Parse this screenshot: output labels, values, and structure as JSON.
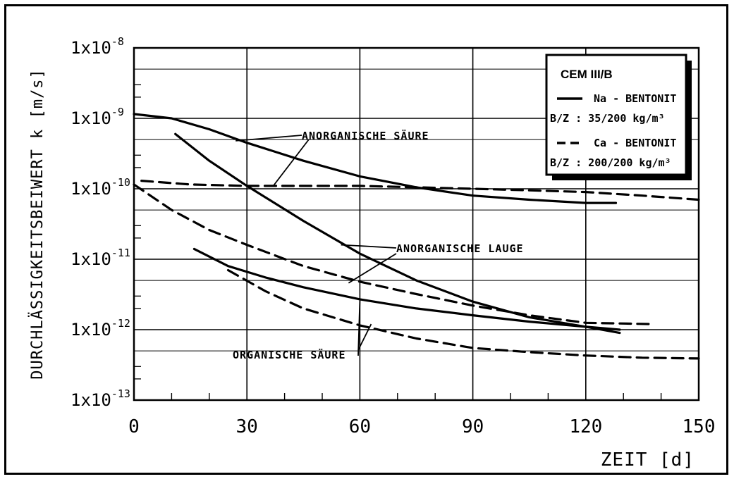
{
  "chart_data": {
    "type": "line",
    "ylabel": "DURCHLÄSSIGKEITSBEIWERT  k [m/s]",
    "xlabel": "ZEIT  [d]",
    "xlim": [
      0,
      150
    ],
    "ylim": [
      1e-13,
      1e-08
    ],
    "yscale": "log",
    "grid": true,
    "x_ticks": [
      "0",
      "30",
      "60",
      "90",
      "120",
      "150"
    ],
    "y_ticks": [
      {
        "base": "1x10",
        "exp": "-8",
        "value": 1e-08
      },
      {
        "base": "1x10",
        "exp": "-9",
        "value": 1e-09
      },
      {
        "base": "1x10",
        "exp": "-10",
        "value": 1e-10
      },
      {
        "base": "1x10",
        "exp": "-11",
        "value": 1e-11
      },
      {
        "base": "1x10",
        "exp": "-12",
        "value": 1e-12
      },
      {
        "base": "1x10",
        "exp": "-13",
        "value": 1e-13
      }
    ],
    "legend": {
      "placement": "top-right",
      "title": "CEM III/B",
      "entries": [
        {
          "style": "solid",
          "label": "Na - BENTONIT",
          "sub": "B/Z :  35/200 kg/m³"
        },
        {
          "style": "dashed",
          "label": "Ca - BENTONIT",
          "sub": "B/Z : 200/200 kg/m³"
        }
      ]
    },
    "annotations": [
      {
        "text": "ANORGANISCHE SÄURE"
      },
      {
        "text": "ANORGANISCHE LAUGE"
      },
      {
        "text": "ORGANISCHE SÄURE"
      }
    ],
    "series": [
      {
        "group": "ANORGANISCHE SÄURE",
        "style": "solid",
        "x": [
          0,
          10,
          20,
          30,
          45,
          60,
          75,
          90,
          105,
          120,
          128
        ],
        "y": [
          1.15e-09,
          1e-09,
          7e-10,
          4.5e-10,
          2.5e-10,
          1.5e-10,
          1.05e-10,
          8e-11,
          7e-11,
          6.3e-11,
          6.3e-11
        ]
      },
      {
        "group": "ANORGANISCHE SÄURE",
        "style": "dashed",
        "x": [
          2,
          15,
          30,
          45,
          60,
          75,
          90,
          105,
          120,
          135,
          150
        ],
        "y": [
          1.3e-10,
          1.15e-10,
          1.1e-10,
          1.1e-10,
          1.1e-10,
          1.05e-10,
          1e-10,
          9.5e-11,
          9e-11,
          8e-11,
          7e-11
        ]
      },
      {
        "group": "ANORGANISCHE LAUGE",
        "style": "solid",
        "x": [
          11,
          20,
          30,
          45,
          60,
          75,
          90,
          105,
          120,
          129
        ],
        "y": [
          6e-10,
          2.5e-10,
          1.1e-10,
          3.5e-11,
          1.2e-11,
          5e-12,
          2.5e-12,
          1.5e-12,
          1.1e-12,
          9e-13
        ]
      },
      {
        "group": "ANORGANISCHE LAUGE",
        "style": "dashed",
        "x": [
          0,
          10,
          20,
          30,
          45,
          60,
          75,
          90,
          105,
          120,
          138
        ],
        "y": [
          1.15e-10,
          5e-11,
          2.6e-11,
          1.6e-11,
          8e-12,
          4.8e-12,
          3.2e-12,
          2.2e-12,
          1.6e-12,
          1.25e-12,
          1.2e-12
        ]
      },
      {
        "group": "ORGANISCHE SÄURE",
        "style": "solid",
        "x": [
          16,
          25,
          35,
          45,
          60,
          75,
          90,
          105,
          120,
          129
        ],
        "y": [
          1.4e-11,
          8e-12,
          5.5e-12,
          4e-12,
          2.7e-12,
          2e-12,
          1.6e-12,
          1.3e-12,
          1.1e-12,
          1e-12
        ]
      },
      {
        "group": "ORGANISCHE SÄURE",
        "style": "dashed",
        "x": [
          25,
          35,
          45,
          60,
          75,
          90,
          105,
          120,
          135,
          150
        ],
        "y": [
          7e-12,
          3.5e-12,
          2e-12,
          1.15e-12,
          7.5e-13,
          5.5e-13,
          4.8e-13,
          4.3e-13,
          4e-13,
          3.9e-13
        ]
      }
    ]
  }
}
